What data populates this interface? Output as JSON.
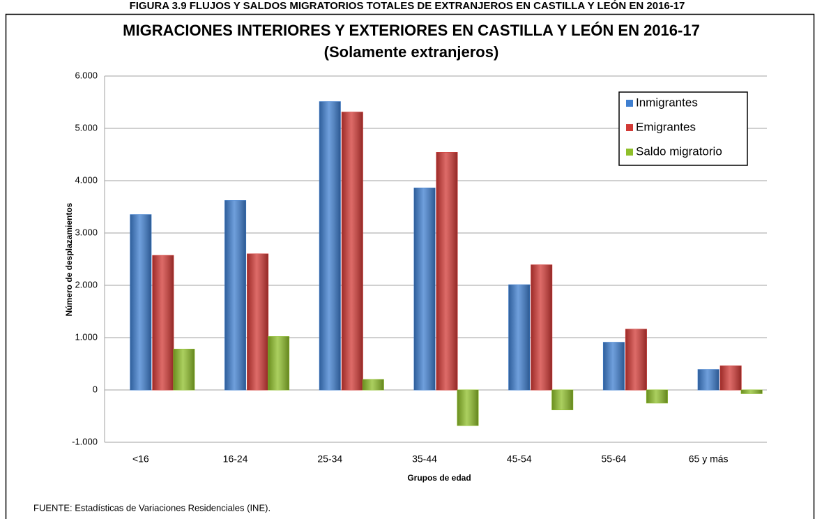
{
  "figure_caption": "FIGURA 3.9 FLUJOS Y SALDOS MIGRATORIOS TOTALES DE EXTRANJEROS EN CASTILLA Y LEÓN EN 2016-17",
  "chart_data": {
    "type": "bar",
    "title": "MIGRACIONES INTERIORES Y EXTERIORES EN CASTILLA Y LEÓN EN 2016-17",
    "subtitle": "(Solamente extranjeros)",
    "x_label": "Grupos de edad",
    "y_label": "Número de desplazamientos",
    "categories": [
      "<16",
      "16-24",
      "25-34",
      "35-44",
      "45-54",
      "55-64",
      "65 y más"
    ],
    "series": [
      {
        "name": "Inmigrantes",
        "color": "#3f7fd0",
        "values": [
          3350,
          3620,
          5510,
          3860,
          2010,
          910,
          390
        ]
      },
      {
        "name": "Emigrantes",
        "color": "#d23a36",
        "values": [
          2570,
          2600,
          5310,
          4540,
          2390,
          1160,
          460
        ]
      },
      {
        "name": "Saldo migratorio",
        "color": "#8fbf2a",
        "values": [
          780,
          1020,
          200,
          -680,
          -380,
          -250,
          -70
        ]
      }
    ],
    "ylim": [
      -1000,
      6000
    ],
    "yticks": [
      {
        "value": -1000,
        "label": "-1.000"
      },
      0,
      {
        "value": 1000,
        "label": "1.000"
      },
      {
        "value": 2000,
        "label": "2.000"
      },
      {
        "value": 3000,
        "label": "3.000"
      },
      {
        "value": 4000,
        "label": "4.000"
      },
      {
        "value": 5000,
        "label": "5.000"
      },
      {
        "value": 6000,
        "label": "6.000"
      }
    ],
    "grid": true,
    "legend": "top-right",
    "source": "FUENTE: Estadísticas de Variaciones Residenciales (INE)."
  }
}
